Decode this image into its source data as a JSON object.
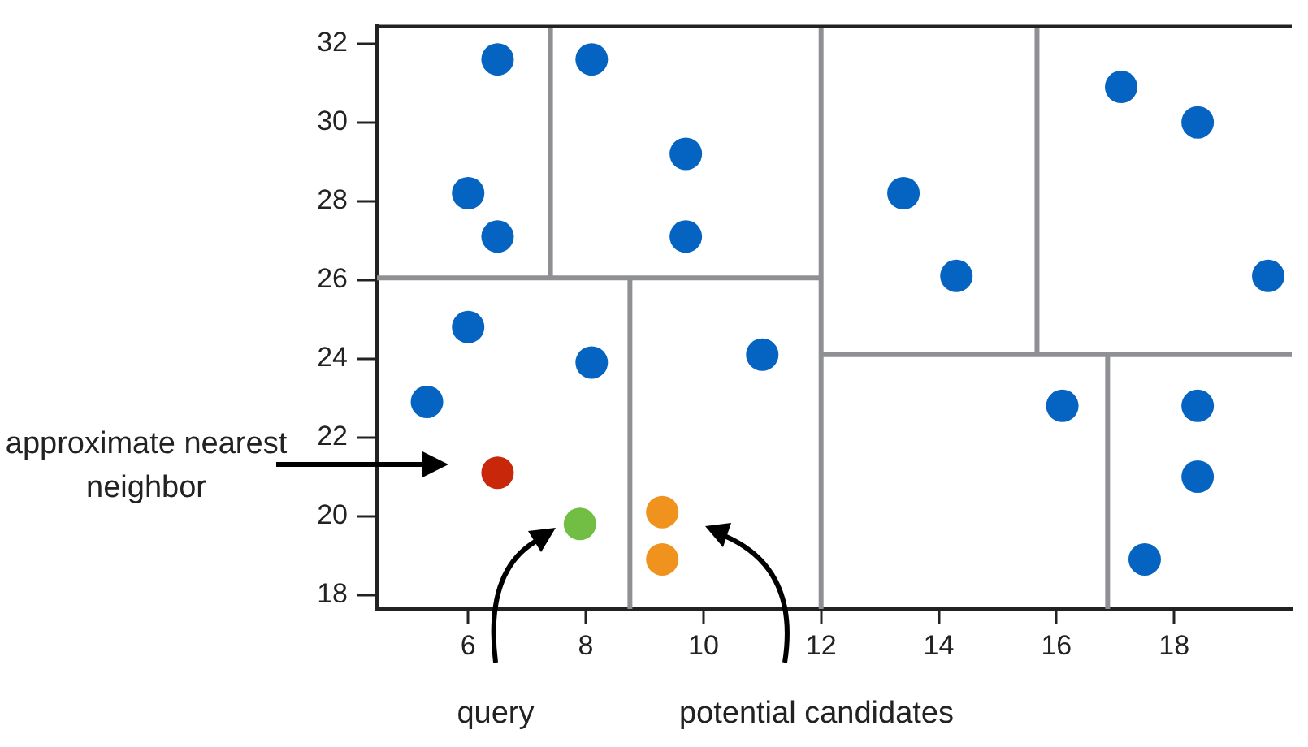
{
  "chart_data": {
    "type": "scatter",
    "marker": "circle",
    "grid": false,
    "legend": false,
    "xlim": [
      4.45,
      20
    ],
    "ylim": [
      17.64,
      32.44
    ],
    "xticks": [
      6,
      8,
      10,
      12,
      14,
      16,
      18
    ],
    "yticks": [
      18,
      20,
      22,
      24,
      26,
      28,
      30,
      32
    ],
    "series": [
      {
        "color": "#0563c1",
        "x": [
          6.5,
          8.1,
          6.0,
          6.5,
          9.7,
          9.7,
          6.0,
          5.3,
          8.1,
          11.0,
          13.4,
          14.3,
          17.1,
          18.4,
          19.6,
          16.1,
          18.4,
          18.4,
          17.5
        ],
        "values": [
          31.6,
          31.6,
          28.2,
          27.1,
          29.2,
          27.1,
          24.8,
          22.9,
          23.9,
          24.1,
          28.2,
          26.1,
          30.9,
          30.0,
          26.1,
          22.8,
          22.8,
          21.0,
          18.9
        ]
      },
      {
        "color": "#c8270a",
        "x": [
          6.5
        ],
        "values": [
          21.1
        ]
      },
      {
        "color": "#72be44",
        "x": [
          7.9
        ],
        "values": [
          19.8
        ]
      },
      {
        "color": "#f0931e",
        "x": [
          9.3,
          9.3
        ],
        "values": [
          20.1,
          18.9
        ]
      },
      {
        "type": "line",
        "marker": "none",
        "color": "#8e9094",
        "x": [
          7.4,
          7.4
        ],
        "values": [
          26.05,
          32.44
        ]
      },
      {
        "type": "line",
        "marker": "none",
        "color": "#8e9094",
        "x": [
          4.45,
          12
        ],
        "values": [
          26.05,
          26.05
        ]
      },
      {
        "type": "line",
        "marker": "none",
        "color": "#8e9094",
        "x": [
          12,
          12
        ],
        "values": [
          17.64,
          32.44
        ]
      },
      {
        "type": "line",
        "marker": "none",
        "color": "#8e9094",
        "x": [
          8.75,
          8.75
        ],
        "values": [
          17.64,
          26.05
        ]
      },
      {
        "type": "line",
        "marker": "none",
        "color": "#8e9094",
        "x": [
          15.67,
          15.67
        ],
        "values": [
          24.1,
          32.44
        ]
      },
      {
        "type": "line",
        "marker": "none",
        "color": "#8e9094",
        "x": [
          12,
          20
        ],
        "values": [
          24.1,
          24.1
        ]
      },
      {
        "type": "line",
        "marker": "none",
        "color": "#8e9094",
        "x": [
          16.87,
          16.87
        ],
        "values": [
          17.64,
          24.1
        ]
      }
    ],
    "annotations": [
      "approximate nearest neighbor",
      "query",
      "potential candidates"
    ]
  }
}
